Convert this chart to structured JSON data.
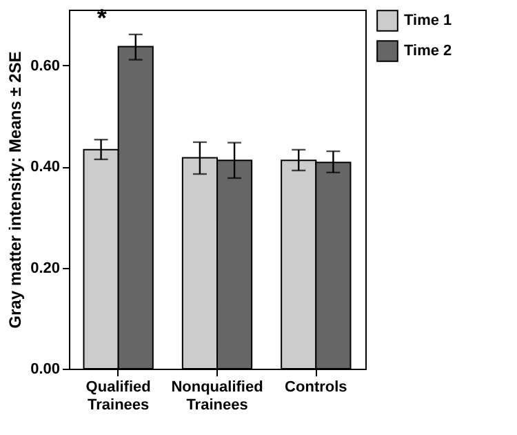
{
  "chart_data": {
    "type": "bar",
    "ylabel": "Gray matter intensity: Means ± 2SE",
    "categories": [
      "Qualified Trainees",
      "Nonqualified Trainees",
      "Controls"
    ],
    "series": [
      {
        "name": "Time 1",
        "color": "#cccccc",
        "values": [
          0.433,
          0.417,
          0.412
        ],
        "errors": [
          [
            0.414,
            0.453
          ],
          [
            0.385,
            0.448
          ],
          [
            0.392,
            0.433
          ]
        ]
      },
      {
        "name": "Time 2",
        "color": "#666666",
        "values": [
          0.637,
          0.412,
          0.408
        ],
        "errors": [
          [
            0.611,
            0.661
          ],
          [
            0.377,
            0.447
          ],
          [
            0.388,
            0.43
          ]
        ]
      }
    ],
    "ylim": [
      0,
      0.71
    ],
    "yticks": [
      {
        "value": 0,
        "label": "0.00"
      },
      {
        "value": 0.2,
        "label": "0.20"
      },
      {
        "value": 0.4,
        "label": "0.40"
      },
      {
        "value": 0.6,
        "label": "0.60"
      }
    ],
    "annotations": [
      "*"
    ],
    "grid": false,
    "legend": "top right"
  }
}
